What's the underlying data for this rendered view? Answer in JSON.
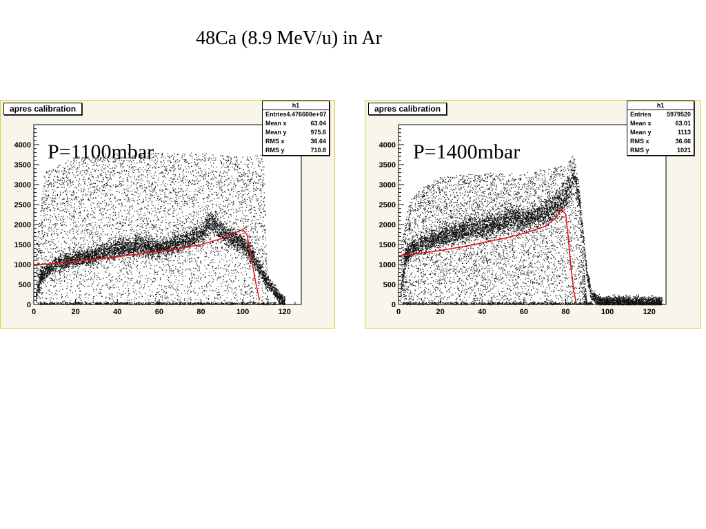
{
  "page": {
    "title": "48Ca (8.9 MeV/u) in Ar"
  },
  "chart_data": [
    {
      "type": "scatter",
      "title": "apres calibration",
      "annotation": "P=1100mbar",
      "xlim": [
        0,
        128
      ],
      "ylim": [
        0,
        4500
      ],
      "xticks": [
        0,
        20,
        40,
        60,
        80,
        100,
        120
      ],
      "yticks": [
        0,
        500,
        1000,
        1500,
        2000,
        2500,
        3000,
        3500,
        4000
      ],
      "stats": {
        "name": "h1",
        "rows": [
          {
            "label": "Entries",
            "value": "4.476608e+07"
          },
          {
            "label": "Mean x",
            "value": "63.04"
          },
          {
            "label": "Mean y",
            "value": "975.6"
          },
          {
            "label": "RMS x",
            "value": "36.64"
          },
          {
            "label": "RMS y",
            "value": "710.8"
          }
        ]
      },
      "band": {
        "x": [
          1,
          3,
          6,
          10,
          20,
          30,
          40,
          50,
          60,
          70,
          80,
          85,
          90,
          95,
          100,
          105,
          110,
          115,
          118,
          120
        ],
        "y": [
          200,
          700,
          850,
          1000,
          1150,
          1250,
          1400,
          1500,
          1400,
          1550,
          1800,
          2100,
          1800,
          1700,
          1500,
          1200,
          700,
          350,
          150,
          80
        ]
      },
      "cloud_top": {
        "x": [
          1,
          5,
          10,
          20,
          40,
          60,
          80,
          100,
          110,
          112
        ],
        "y": [
          1500,
          3300,
          3500,
          3700,
          3800,
          3800,
          3800,
          3700,
          3800,
          0
        ]
      },
      "fit": {
        "x": [
          0,
          10,
          20,
          30,
          40,
          50,
          60,
          70,
          80,
          90,
          97,
          100,
          102,
          104,
          106,
          108
        ],
        "y": [
          980,
          1030,
          1080,
          1140,
          1200,
          1260,
          1330,
          1400,
          1500,
          1650,
          1810,
          1870,
          1750,
          1200,
          600,
          100
        ]
      }
    },
    {
      "type": "scatter",
      "title": "apres calibration",
      "annotation": "P=1400mbar",
      "xlim": [
        0,
        128
      ],
      "ylim": [
        0,
        4500
      ],
      "xticks": [
        0,
        20,
        40,
        60,
        80,
        100,
        120
      ],
      "yticks": [
        0,
        500,
        1000,
        1500,
        2000,
        2500,
        3000,
        3500,
        4000
      ],
      "stats": {
        "name": "h1",
        "rows": [
          {
            "label": "Entries",
            "value": "5979520"
          },
          {
            "label": "Mean x",
            "value": "63.01"
          },
          {
            "label": "Mean y",
            "value": "1113"
          },
          {
            "label": "RMS x",
            "value": "36.66"
          },
          {
            "label": "RMS y",
            "value": "1021"
          }
        ]
      },
      "band": {
        "x": [
          1,
          3,
          6,
          10,
          20,
          30,
          40,
          50,
          55,
          60,
          70,
          80,
          84,
          86,
          88,
          90,
          92,
          95,
          100,
          110,
          120,
          126
        ],
        "y": [
          300,
          1200,
          1400,
          1500,
          1700,
          1850,
          1950,
          2100,
          2200,
          2100,
          2300,
          2700,
          3300,
          2800,
          1800,
          800,
          250,
          120,
          100,
          90,
          80,
          70
        ]
      },
      "cloud_top": {
        "x": [
          1,
          5,
          10,
          20,
          40,
          60,
          80,
          84,
          86,
          90
        ],
        "y": [
          1500,
          2600,
          2900,
          3200,
          3300,
          3300,
          3500,
          3800,
          3000,
          0
        ]
      },
      "fit": {
        "x": [
          0,
          10,
          20,
          30,
          40,
          50,
          60,
          70,
          75,
          78,
          80,
          81,
          82,
          83,
          84,
          85
        ],
        "y": [
          1220,
          1280,
          1350,
          1440,
          1540,
          1650,
          1780,
          1950,
          2150,
          2380,
          2250,
          1800,
          1200,
          700,
          300,
          50
        ]
      }
    }
  ]
}
